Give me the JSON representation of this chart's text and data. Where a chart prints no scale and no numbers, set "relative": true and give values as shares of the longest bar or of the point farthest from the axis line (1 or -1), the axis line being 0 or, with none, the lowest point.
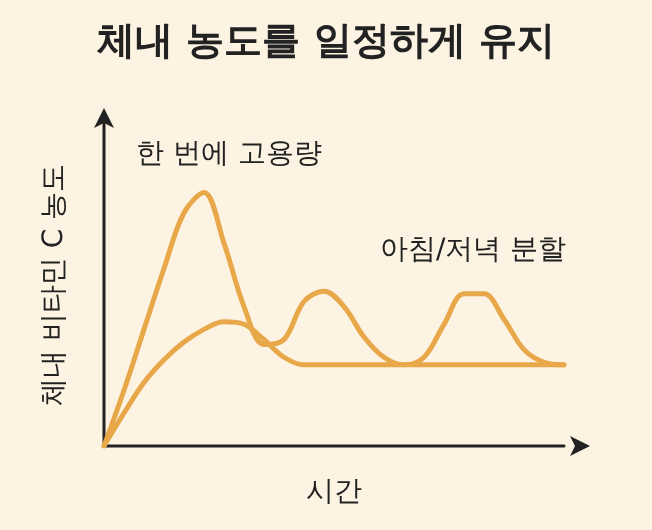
{
  "chart_data": {
    "type": "line",
    "title": "체내 농도를 일정하게 유지",
    "xlabel": "시간",
    "ylabel": "체내 비타민 C 농도",
    "relative": true,
    "grid": false,
    "marker": "none",
    "line_style": "solid",
    "annotations": [
      "한 번에 고용량",
      "아침/저녁 분할"
    ],
    "categories": [
      null,
      null,
      null,
      null,
      null,
      null,
      null,
      null,
      null,
      null,
      null,
      null,
      null,
      null,
      null,
      null,
      null,
      null,
      null,
      null,
      null,
      null,
      null,
      null
    ],
    "series": [
      {
        "color": "#e8a84a",
        "values": [
          0,
          0.22,
          0.46,
          0.7,
          0.92,
          1,
          0.8,
          0.55,
          0.4,
          0.42,
          0.57,
          0.61,
          0.55,
          0.43,
          0.35,
          0.32,
          0.35,
          0.48,
          0.6,
          0.6,
          0.5,
          0.38,
          0.33,
          0.32
        ]
      },
      {
        "color": "#e8a84a",
        "values": [
          0,
          0.13,
          0.25,
          0.34,
          0.41,
          0.46,
          0.49,
          0.48,
          0.42,
          0.35,
          0.32,
          0.32,
          0.32,
          0.32,
          0.32,
          0.32,
          0.32,
          0.32,
          0.32,
          0.32,
          0.32,
          0.32,
          0.32,
          0.32
        ]
      }
    ]
  }
}
